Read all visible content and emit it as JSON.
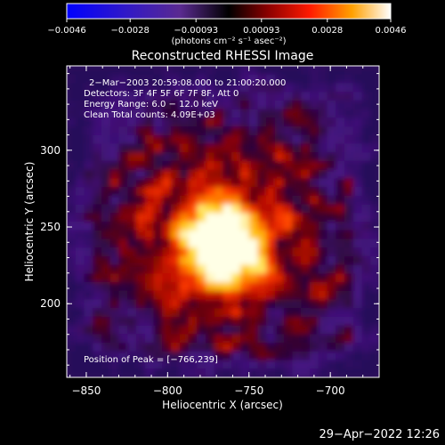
{
  "chart_data": {
    "type": "heatmap",
    "title": "Reconstructed RHESSI Image",
    "xlabel": "Heliocentric X (arcsec)",
    "ylabel": "Heliocentric Y (arcsec)",
    "xlim": [
      -862,
      -670
    ],
    "ylim": [
      152,
      355
    ],
    "x_ticks": [
      -850,
      -800,
      -750,
      -700
    ],
    "x_tick_labels": [
      "−850",
      "−800",
      "−750",
      "−700"
    ],
    "y_ticks": [
      200,
      250,
      300
    ],
    "y_tick_labels": [
      "200",
      "250",
      "300"
    ],
    "peak": [
      -766,
      239
    ],
    "colorbar": {
      "min": -0.0046,
      "max": 0.0046,
      "ticks": [
        -0.0046,
        -0.0028,
        -0.00093,
        0.00093,
        0.0028,
        0.0046
      ],
      "tick_labels": [
        "−0.0046",
        "−0.0028",
        "−0.00093",
        "0.00093",
        "0.0028",
        "0.0046"
      ],
      "units_label": "(photons cm⁻² s⁻¹ asec⁻²)"
    },
    "annotations": [
      "2−Mar−2003 20:59:08.000 to 21:00:20.000",
      "Detectors: 3F 4F 5F 6F 7F 8F, Att 0",
      "Energy Range: 6.0 − 12.0 keV",
      "Clean     Total counts: 4.09E+03"
    ],
    "peak_label": "Position of Peak = [−766,239]"
  },
  "footer_date": "29−Apr−2022 12:26"
}
